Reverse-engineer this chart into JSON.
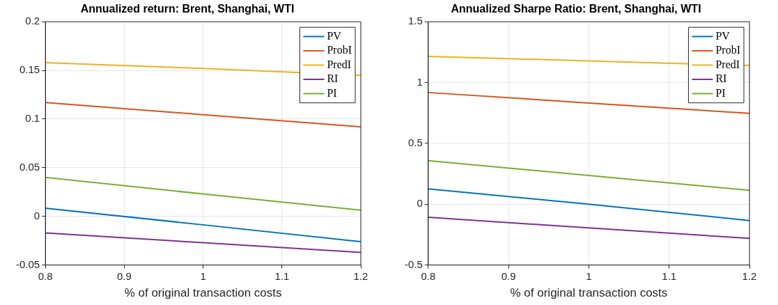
{
  "chart_data": [
    {
      "type": "line",
      "title": "Annualized return: Brent, Shanghai, WTI",
      "xlabel": "% of original transaction costs",
      "x": [
        0.8,
        1,
        1.2
      ],
      "xlim": [
        0.8,
        1.2
      ],
      "xticks": [
        0.8,
        0.9,
        1,
        1.1,
        1.2
      ],
      "ylim": [
        -0.05,
        0.2
      ],
      "yticks": [
        -0.05,
        0,
        0.05,
        0.1,
        0.15,
        0.2
      ],
      "grid": true,
      "legend": "top right",
      "marker": "none",
      "line_style": "solid",
      "series": [
        {
          "name": "PV",
          "color": "#0072bd",
          "values": [
            0.0084,
            -0.0087,
            -0.026
          ]
        },
        {
          "name": "ProbI",
          "color": "#d95319",
          "values": [
            0.117,
            0.1045,
            0.092
          ]
        },
        {
          "name": "PredI",
          "color": "#edb120",
          "values": [
            0.158,
            0.152,
            0.145
          ]
        },
        {
          "name": "RI",
          "color": "#7e2f8e",
          "values": [
            -0.017,
            -0.027,
            -0.037
          ]
        },
        {
          "name": "PI",
          "color": "#77ac30",
          "values": [
            0.04,
            0.023,
            0.0064
          ]
        }
      ]
    },
    {
      "type": "line",
      "title": "Annualized Sharpe Ratio: Brent, Shanghai, WTI",
      "xlabel": "% of original transaction costs",
      "x": [
        0.8,
        1,
        1.2
      ],
      "xlim": [
        0.8,
        1.2
      ],
      "xticks": [
        0.8,
        0.9,
        1,
        1.1,
        1.2
      ],
      "ylim": [
        -0.5,
        1.5
      ],
      "yticks": [
        -0.5,
        0,
        0.5,
        1,
        1.5
      ],
      "grid": true,
      "legend": "top right",
      "marker": "none",
      "line_style": "solid",
      "series": [
        {
          "name": "PV",
          "color": "#0072bd",
          "values": [
            0.126,
            0,
            -0.134
          ]
        },
        {
          "name": "ProbI",
          "color": "#d95319",
          "values": [
            0.918,
            0.832,
            0.747
          ]
        },
        {
          "name": "PredI",
          "color": "#edb120",
          "values": [
            1.215,
            1.178,
            1.14
          ]
        },
        {
          "name": "RI",
          "color": "#7e2f8e",
          "values": [
            -0.108,
            -0.195,
            -0.281
          ]
        },
        {
          "name": "PI",
          "color": "#77ac30",
          "values": [
            0.358,
            0.236,
            0.114
          ]
        }
      ]
    }
  ]
}
